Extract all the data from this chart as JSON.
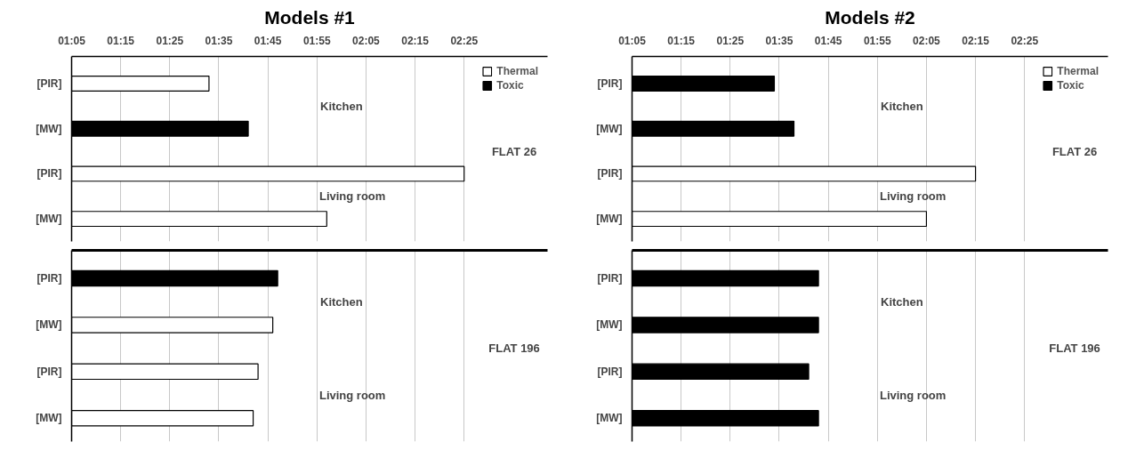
{
  "chart_data": [
    {
      "type": "bar",
      "orientation": "horizontal",
      "title": "Models #1",
      "categories": [
        "[PIR]",
        "[MW]",
        "[PIR]",
        "[MW]"
      ],
      "series": [
        {
          "name": "Thermal",
          "color": "#ffffff",
          "values": [
            93,
            null,
            145,
            117
          ]
        },
        {
          "name": "Toxic",
          "color": "#000000",
          "values": [
            null,
            101,
            null,
            null
          ]
        }
      ],
      "xlim": [
        65,
        162
      ],
      "xticks": [
        {
          "value": 65,
          "label": "01:05"
        },
        {
          "value": 75,
          "label": "01:15"
        },
        {
          "value": 85,
          "label": "01:25"
        },
        {
          "value": 95,
          "label": "01:35"
        },
        {
          "value": 105,
          "label": "01:45"
        },
        {
          "value": 115,
          "label": "01:55"
        },
        {
          "value": 125,
          "label": "02:05"
        },
        {
          "value": 135,
          "label": "02:15"
        },
        {
          "value": 145,
          "label": "02:25"
        }
      ],
      "annotations": [
        "Kitchen",
        "Living room",
        "FLAT 26"
      ],
      "grid": "x",
      "legend": "top right"
    },
    {
      "type": "bar",
      "orientation": "horizontal",
      "categories": [
        "[PIR]",
        "[MW]",
        "[PIR]",
        "[MW]"
      ],
      "series": [
        {
          "color": "#ffffff",
          "values": [
            null,
            106,
            103,
            102
          ]
        },
        {
          "color": "#000000",
          "values": [
            107,
            null,
            null,
            null
          ]
        }
      ],
      "xlim": [
        65,
        162
      ],
      "annotations": [
        "Kitchen",
        "Living room",
        "FLAT 196"
      ],
      "grid": "x",
      "tick_labels": "y"
    },
    {
      "type": "bar",
      "orientation": "horizontal",
      "title": "Models #2",
      "categories": [
        "[PIR]",
        "[MW]",
        "[PIR]",
        "[MW]"
      ],
      "series": [
        {
          "name": "Thermal",
          "color": "#ffffff",
          "values": [
            null,
            null,
            135,
            125
          ]
        },
        {
          "name": "Toxic",
          "color": "#000000",
          "values": [
            94,
            98,
            null,
            null
          ]
        }
      ],
      "xlim": [
        65,
        162
      ],
      "xticks": [
        {
          "value": 65,
          "label": "01:05"
        },
        {
          "value": 75,
          "label": "01:15"
        },
        {
          "value": 85,
          "label": "01:25"
        },
        {
          "value": 95,
          "label": "01:35"
        },
        {
          "value": 105,
          "label": "01:45"
        },
        {
          "value": 115,
          "label": "01:55"
        },
        {
          "value": 125,
          "label": "02:05"
        },
        {
          "value": 135,
          "label": "02:15"
        },
        {
          "value": 145,
          "label": "02:25"
        }
      ],
      "annotations": [
        "Kitchen",
        "Living room",
        "FLAT 26"
      ],
      "grid": "x",
      "legend": "top right"
    },
    {
      "type": "bar",
      "orientation": "horizontal",
      "categories": [
        "[PIR]",
        "[MW]",
        "[PIR]",
        "[MW]"
      ],
      "series": [
        {
          "color": "#ffffff",
          "values": [
            null,
            null,
            null,
            null
          ]
        },
        {
          "color": "#000000",
          "values": [
            103,
            103,
            101,
            103
          ]
        }
      ],
      "xlim": [
        65,
        162
      ],
      "annotations": [
        "Kitchen",
        "Living room",
        "FLAT 196"
      ],
      "grid": "x",
      "tick_labels": "y"
    }
  ]
}
